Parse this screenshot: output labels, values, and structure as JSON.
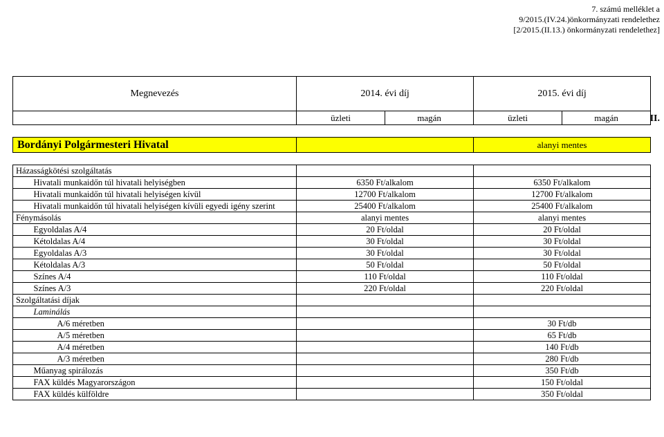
{
  "header": {
    "line1": "7. számú melléklet a",
    "line2": "9/2015.(IV.24.)önkormányzati rendelethez",
    "line3": "[2/2015.(II.13.) önkormányzati rendelethez]"
  },
  "colHeaders": {
    "megnevezes": "Megnevezés",
    "year2014": "2014. évi díj",
    "year2015": "2015. évi díj",
    "uzleti": "üzleti",
    "magan": "magán"
  },
  "roman": "II.",
  "section": {
    "title": "Bordányi Polgármesteri Hivatal",
    "sublabel": "alanyi mentes"
  },
  "rows": [
    {
      "indent": 0,
      "label": "Házasságkötési szolgáltatás",
      "v14": "",
      "v15": ""
    },
    {
      "indent": 1,
      "label": "Hivatali munkaidőn túl hivatali helyiségben",
      "v14": "6350 Ft/alkalom",
      "v15": "6350 Ft/alkalom"
    },
    {
      "indent": 1,
      "label": "Hivatali munkaidőn túl hivatali helyiségen kívül",
      "v14": "12700 Ft/alkalom",
      "v15": "12700 Ft/alkalom"
    },
    {
      "indent": 1,
      "label": "Hivatali munkaidőn túl hivatali helyiségen kívüli egyedi igény szerint",
      "v14": "25400 Ft/alkalom",
      "v15": "25400 Ft/alkalom"
    },
    {
      "indent": 0,
      "label": "Fénymásolás",
      "v14": "alanyi mentes",
      "v15": "alanyi mentes"
    },
    {
      "indent": 1,
      "label": "Egyoldalas A/4",
      "v14": "20 Ft/oldal",
      "v15": "20 Ft/oldal"
    },
    {
      "indent": 1,
      "label": "Kétoldalas A/4",
      "v14": "30 Ft/oldal",
      "v15": "30 Ft/oldal"
    },
    {
      "indent": 1,
      "label": "Egyoldalas A/3",
      "v14": "30 Ft/oldal",
      "v15": "30 Ft/oldal"
    },
    {
      "indent": 1,
      "label": "Kétoldalas A/3",
      "v14": "50 Ft/oldal",
      "v15": "50 Ft/oldal"
    },
    {
      "indent": 1,
      "label": "Színes A/4",
      "v14": "110 Ft/oldal",
      "v15": "110 Ft/oldal"
    },
    {
      "indent": 1,
      "label": "Színes A/3",
      "v14": "220 Ft/oldal",
      "v15": "220 Ft/oldal"
    },
    {
      "indent": 0,
      "label": "Szolgáltatási díjak",
      "v14": "",
      "v15": ""
    },
    {
      "indent": 1,
      "label": "Laminálás",
      "italic": true,
      "v14": "",
      "v15": ""
    },
    {
      "indent": 2,
      "label": "A/6 méretben",
      "v14": "",
      "v15": "30 Ft/db"
    },
    {
      "indent": 2,
      "label": "A/5 méretben",
      "v14": "",
      "v15": "65 Ft/db"
    },
    {
      "indent": 2,
      "label": "A/4 méretben",
      "v14": "",
      "v15": "140 Ft/db"
    },
    {
      "indent": 2,
      "label": "A/3 méretben",
      "v14": "",
      "v15": "280 Ft/db"
    },
    {
      "indent": 1,
      "label": "Műanyag spirálozás",
      "v14": "",
      "v15": "350 Ft/db"
    },
    {
      "indent": 1,
      "label": "FAX küldés Magyarországon",
      "v14": "",
      "v15": "150 Ft/oldal"
    },
    {
      "indent": 1,
      "label": "FAX küldés külföldre",
      "v14": "",
      "v15": "350 Ft/oldal"
    }
  ],
  "style": {
    "highlight_bg": "#fdff00",
    "border_color": "#000000",
    "font": "Times New Roman",
    "page_bg": "#ffffff"
  }
}
